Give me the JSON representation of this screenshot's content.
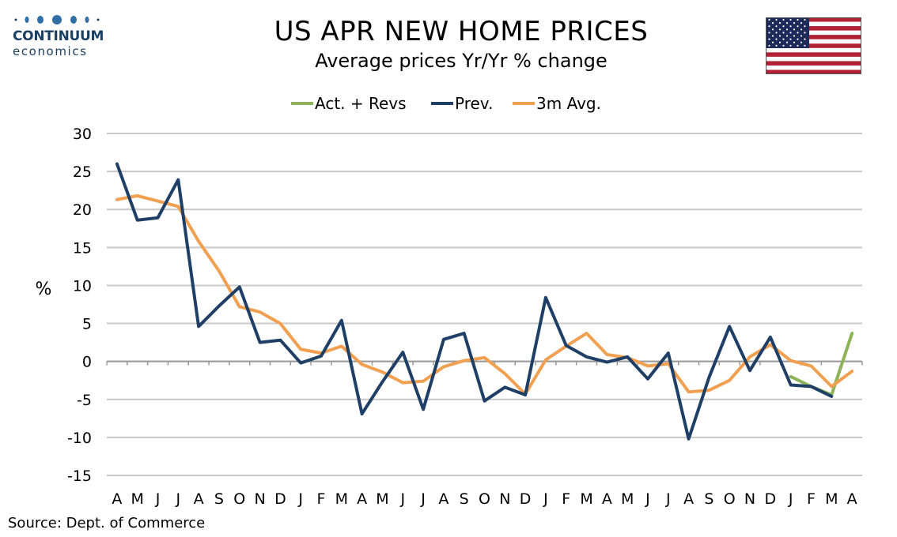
{
  "branding": {
    "name": "CONTINUUM",
    "sub": "economics"
  },
  "flag": {
    "icon": "us-flag-icon"
  },
  "footer": {
    "source": "Source: Dept. of Commerce"
  },
  "chart_data": {
    "type": "line",
    "title": "US APR NEW HOME PRICES",
    "subtitle": "Average prices Yr/Yr % change",
    "xlabel": "",
    "ylabel": "%",
    "ylim": [
      -15,
      30
    ],
    "yticks": [
      30,
      25,
      20,
      15,
      10,
      5,
      0,
      -5,
      -10,
      -15
    ],
    "grid": true,
    "legend_position": "top",
    "categories": [
      "A",
      "M",
      "J",
      "J",
      "A",
      "S",
      "O",
      "N",
      "D",
      "J",
      "F",
      "M",
      "A",
      "M",
      "J",
      "J",
      "A",
      "S",
      "O",
      "N",
      "D",
      "J",
      "F",
      "M",
      "A",
      "M",
      "J",
      "J",
      "A",
      "S",
      "O",
      "N",
      "D",
      "J",
      "F",
      "M",
      "A"
    ],
    "series": [
      {
        "name": "Act. + Revs",
        "color": "#8db359",
        "values": [
          null,
          null,
          null,
          null,
          null,
          null,
          null,
          null,
          null,
          null,
          null,
          null,
          null,
          null,
          null,
          null,
          null,
          null,
          null,
          null,
          null,
          null,
          null,
          null,
          null,
          null,
          null,
          null,
          null,
          null,
          null,
          null,
          null,
          -2.0,
          -3.3,
          -4.4,
          3.7
        ]
      },
      {
        "name": "Prev.",
        "color": "#1f3f66",
        "values": [
          26.0,
          18.6,
          18.9,
          23.9,
          4.6,
          7.3,
          9.8,
          2.5,
          2.8,
          -0.2,
          0.7,
          5.4,
          -6.9,
          -2.7,
          1.2,
          -6.3,
          2.9,
          3.7,
          -5.2,
          -3.4,
          -4.4,
          8.4,
          2.1,
          0.6,
          -0.1,
          0.6,
          -2.3,
          1.1,
          -10.2,
          -2.1,
          4.6,
          -1.2,
          3.2,
          -3.1,
          -3.3,
          -4.6,
          null
        ]
      },
      {
        "name": "3m Avg.",
        "color": "#f0a050",
        "values": [
          21.3,
          21.8,
          21.1,
          20.4,
          15.8,
          11.9,
          7.2,
          6.5,
          5.0,
          1.6,
          1.1,
          2.0,
          -0.4,
          -1.4,
          -2.8,
          -2.6,
          -0.7,
          0.1,
          0.5,
          -1.6,
          -4.3,
          0.2,
          2.0,
          3.7,
          0.9,
          0.5,
          -0.6,
          -0.3,
          -4.0,
          -3.8,
          -2.5,
          0.6,
          2.2,
          0.1,
          -0.6,
          -3.3,
          -1.3
        ]
      }
    ]
  }
}
